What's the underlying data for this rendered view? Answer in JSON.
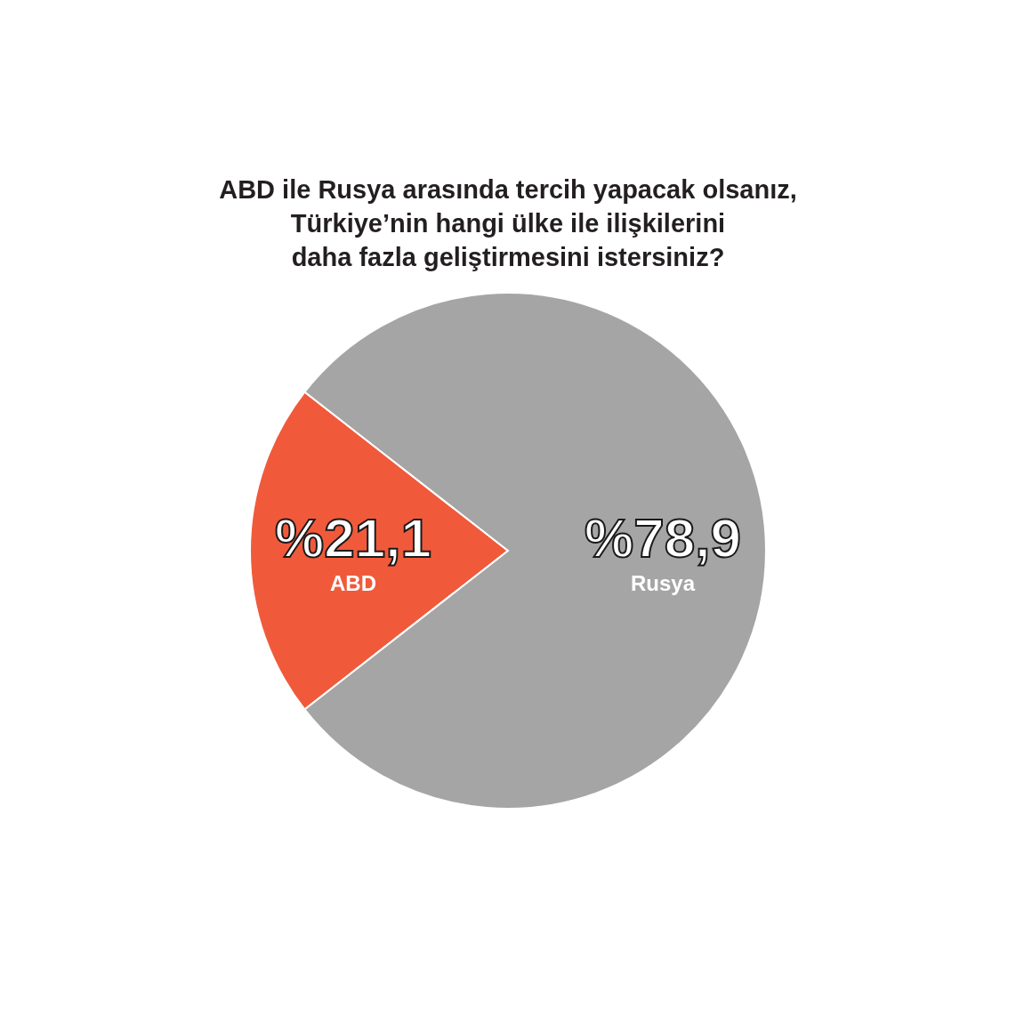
{
  "chart_data": {
    "type": "pie",
    "title": "ABD ile Rusya arasında tercih yapacak olsanız,\nTürkiye’nin hangi ülke ile ilişkilerini\ndaha fazla geliştirmesini istersiniz?",
    "categories": [
      "ABD",
      "Rusya"
    ],
    "values": [
      21.1,
      78.9
    ],
    "colors": [
      "#f05a3b",
      "#a5a5a5"
    ],
    "value_labels": [
      "%21,1",
      "%78,9"
    ]
  }
}
